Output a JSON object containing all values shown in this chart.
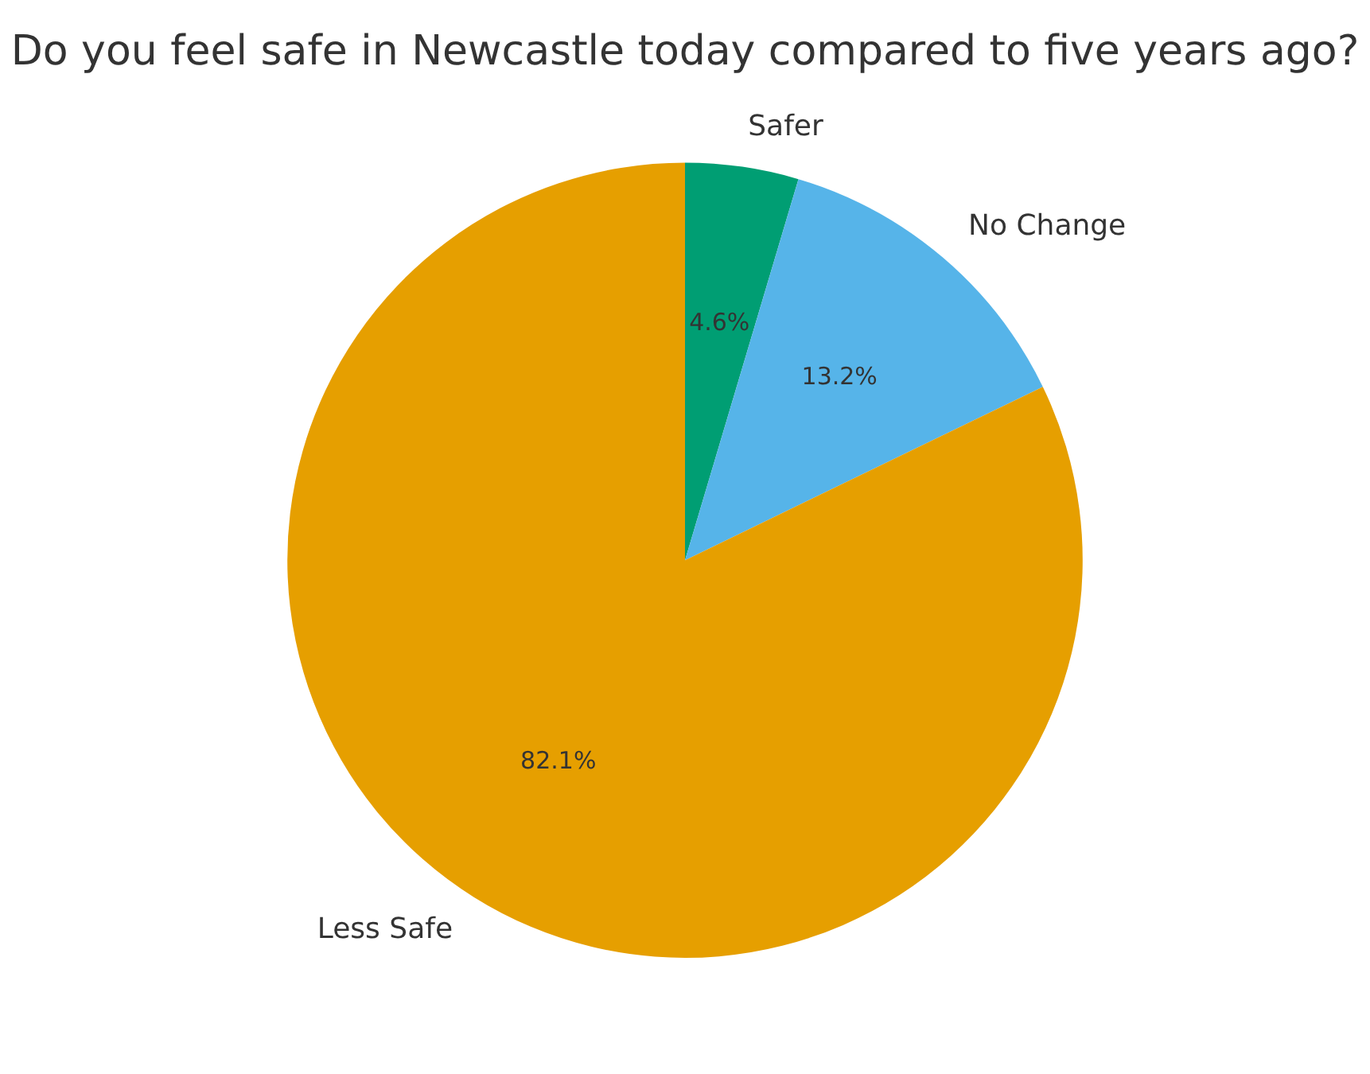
{
  "chart_data": {
    "type": "pie",
    "title": "Do you feel safe in Newcastle today compared to five years ago?",
    "categories": [
      "Safer",
      "No Change",
      "Less Safe"
    ],
    "values": [
      4.6,
      13.2,
      82.1
    ],
    "colors": [
      "#009e73",
      "#56b4e9",
      "#e69f00"
    ],
    "value_labels": [
      "4.6%",
      "13.2%",
      "82.1%"
    ],
    "legend": false
  }
}
